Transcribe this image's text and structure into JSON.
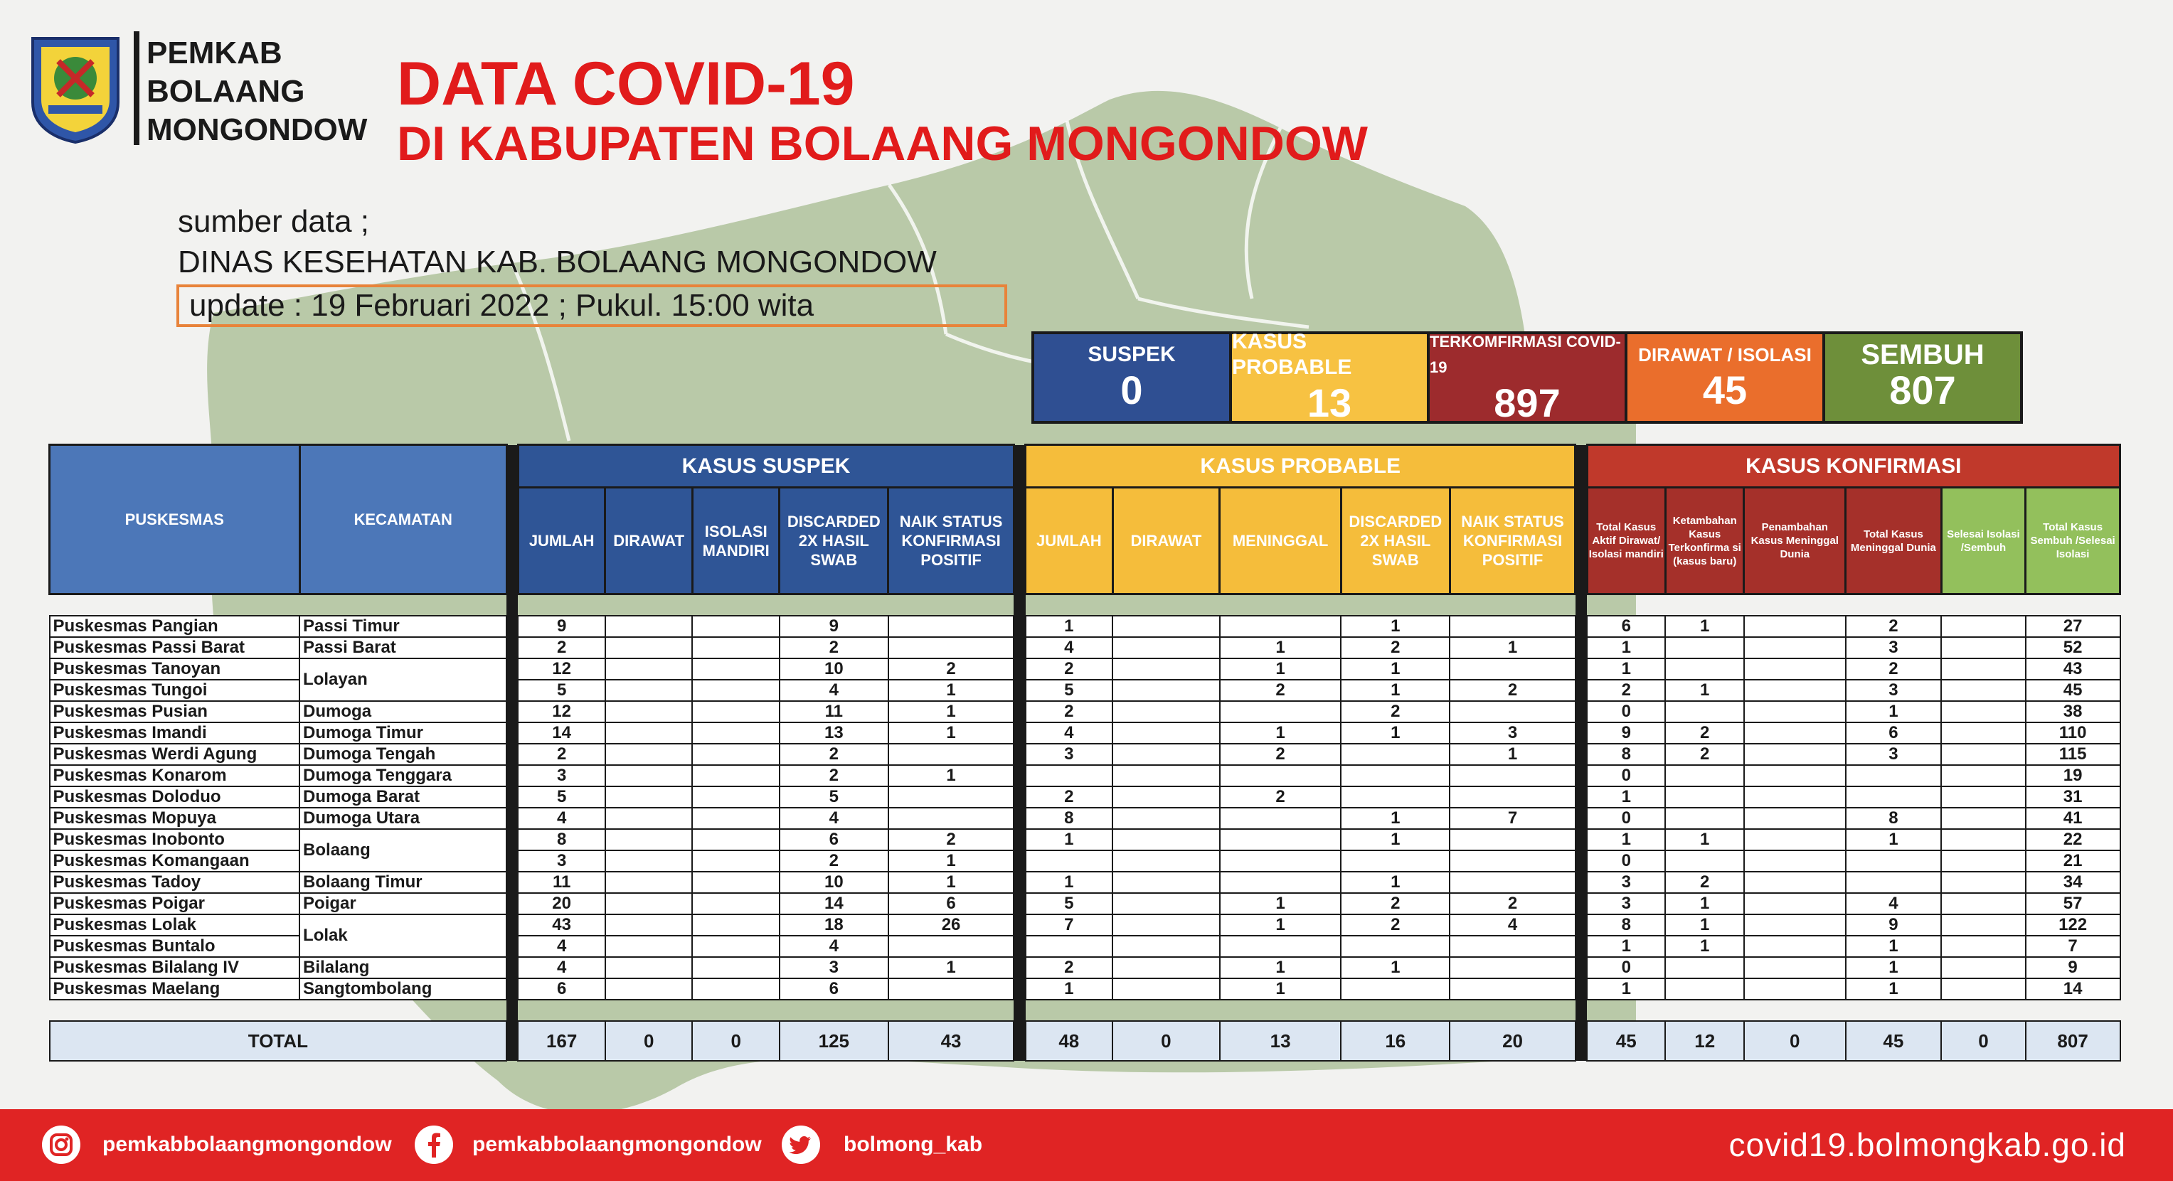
{
  "header": {
    "logo_lines": [
      "PEMKAB",
      "BOLAANG",
      "MONGONDOW"
    ],
    "logo_seal_text": "BOLAANG MONGONDOW",
    "title_line1": "DATA COVID-19",
    "title_line2": "DI KABUPATEN BOLAANG MONGONDOW",
    "source_label": "sumber data ;",
    "source_name": "DINAS KESEHATAN KAB. BOLAANG MONGONDOW",
    "update_text": "update  : 19 Februari 2022 ; Pukul. 15:00 wita"
  },
  "summary": [
    {
      "label": "SUSPEK",
      "value": "0"
    },
    {
      "label": "KASUS PROBABLE",
      "value": "13"
    },
    {
      "label": "TERKOMFIRMASI COVID-19",
      "value": "897"
    },
    {
      "label": "DIRAWAT / ISOLASI",
      "value": "45"
    },
    {
      "label": "SEMBUH",
      "value": "807"
    }
  ],
  "table": {
    "col_puskesmas": "PUSKESMAS",
    "col_kecamatan": "KECAMATAN",
    "group_suspek": "KASUS SUSPEK",
    "group_probable": "KASUS PROBABLE",
    "group_konfirmasi": "KASUS KONFIRMASI",
    "suspek_cols": [
      "JUMLAH",
      "DIRAWAT",
      "ISOLASI MANDIRI",
      "DISCARDED 2X HASIL SWAB",
      "NAIK STATUS KONFIRMASI POSITIF"
    ],
    "probable_cols": [
      "JUMLAH",
      "DIRAWAT",
      "MENINGGAL",
      "DISCARDED 2X HASIL SWAB",
      "NAIK STATUS KONFIRMASI POSITIF"
    ],
    "konfirmasi_cols": [
      "Total Kasus Aktif Dirawat/ Isolasi mandiri",
      "Ketambahan Kasus Terkonfirma si (kasus baru)",
      "Penambahan Kasus Meninggal Dunia",
      "Total Kasus Meninggal Dunia",
      "Selesai Isolasi /Sembuh",
      "Total Kasus Sembuh /Selesai Isolasi"
    ],
    "rows": [
      {
        "p": "Puskesmas Pangian",
        "k": "Passi Timur",
        "v": [
          "9",
          "",
          "",
          "9",
          "",
          "1",
          "",
          "",
          "1",
          "",
          "6",
          "1",
          "",
          "2",
          "",
          "27"
        ]
      },
      {
        "p": "Puskesmas Passi Barat",
        "k": "Passi Barat",
        "v": [
          "2",
          "",
          "",
          "2",
          "",
          "4",
          "",
          "1",
          "2",
          "1",
          "1",
          "",
          "",
          "3",
          "",
          "52"
        ]
      },
      {
        "p": "Puskesmas Tanoyan",
        "k": "Lolayan",
        "span": 2,
        "v": [
          "12",
          "",
          "",
          "10",
          "2",
          "2",
          "",
          "1",
          "1",
          "",
          "1",
          "",
          "",
          "2",
          "",
          "43"
        ]
      },
      {
        "p": "Puskesmas Tungoi",
        "k": null,
        "v": [
          "5",
          "",
          "",
          "4",
          "1",
          "5",
          "",
          "2",
          "1",
          "2",
          "2",
          "1",
          "",
          "3",
          "",
          "45"
        ]
      },
      {
        "p": "Puskesmas Pusian",
        "k": "Dumoga",
        "v": [
          "12",
          "",
          "",
          "11",
          "1",
          "2",
          "",
          "",
          "2",
          "",
          "0",
          "",
          "",
          "1",
          "",
          "38"
        ]
      },
      {
        "p": "Puskesmas Imandi",
        "k": "Dumoga Timur",
        "v": [
          "14",
          "",
          "",
          "13",
          "1",
          "4",
          "",
          "1",
          "1",
          "3",
          "9",
          "2",
          "",
          "6",
          "",
          "110"
        ]
      },
      {
        "p": "Puskesmas Werdi Agung",
        "k": "Dumoga Tengah",
        "v": [
          "2",
          "",
          "",
          "2",
          "",
          "3",
          "",
          "2",
          "",
          "1",
          "8",
          "2",
          "",
          "3",
          "",
          "115"
        ]
      },
      {
        "p": "Puskesmas Konarom",
        "k": "Dumoga Tenggara",
        "v": [
          "3",
          "",
          "",
          "2",
          "1",
          "",
          "",
          "",
          "",
          "",
          "0",
          "",
          "",
          "",
          "",
          "19"
        ]
      },
      {
        "p": "Puskesmas Doloduo",
        "k": "Dumoga Barat",
        "v": [
          "5",
          "",
          "",
          "5",
          "",
          "2",
          "",
          "2",
          "",
          "",
          "1",
          "",
          "",
          "",
          "",
          "31"
        ]
      },
      {
        "p": "Puskesmas Mopuya",
        "k": "Dumoga Utara",
        "v": [
          "4",
          "",
          "",
          "4",
          "",
          "8",
          "",
          "",
          "1",
          "7",
          "0",
          "",
          "",
          "8",
          "",
          "41"
        ]
      },
      {
        "p": "Puskesmas Inobonto",
        "k": "Bolaang",
        "span": 2,
        "v": [
          "8",
          "",
          "",
          "6",
          "2",
          "1",
          "",
          "",
          "1",
          "",
          "1",
          "1",
          "",
          "1",
          "",
          "22"
        ]
      },
      {
        "p": "Puskesmas Komangaan",
        "k": null,
        "v": [
          "3",
          "",
          "",
          "2",
          "1",
          "",
          "",
          "",
          "",
          "",
          "0",
          "",
          "",
          "",
          "",
          "21"
        ]
      },
      {
        "p": "Puskesmas Tadoy",
        "k": "Bolaang Timur",
        "v": [
          "11",
          "",
          "",
          "10",
          "1",
          "1",
          "",
          "",
          "1",
          "",
          "3",
          "2",
          "",
          "",
          "",
          "34"
        ]
      },
      {
        "p": "Puskesmas Poigar",
        "k": "Poigar",
        "v": [
          "20",
          "",
          "",
          "14",
          "6",
          "5",
          "",
          "1",
          "2",
          "2",
          "3",
          "1",
          "",
          "4",
          "",
          "57"
        ]
      },
      {
        "p": "Puskesmas Lolak",
        "k": "Lolak",
        "span": 2,
        "v": [
          "43",
          "",
          "",
          "18",
          "26",
          "7",
          "",
          "1",
          "2",
          "4",
          "8",
          "1",
          "",
          "9",
          "",
          "122"
        ]
      },
      {
        "p": "Puskesmas Buntalo",
        "k": null,
        "v": [
          "4",
          "",
          "",
          "4",
          "",
          "",
          "",
          "",
          "",
          "",
          "1",
          "1",
          "",
          "1",
          "",
          "7"
        ]
      },
      {
        "p": "Puskesmas Bilalang IV",
        "k": "Bilalang",
        "v": [
          "4",
          "",
          "",
          "3",
          "1",
          "2",
          "",
          "1",
          "1",
          "",
          "0",
          "",
          "",
          "1",
          "",
          "9"
        ]
      },
      {
        "p": "Puskesmas Maelang",
        "k": "Sangtombolang",
        "v": [
          "6",
          "",
          "",
          "6",
          "",
          "1",
          "",
          "1",
          "",
          "",
          "1",
          "",
          "",
          "1",
          "",
          "14"
        ]
      }
    ],
    "total_label": "TOTAL",
    "totals": [
      "167",
      "0",
      "0",
      "125",
      "43",
      "48",
      "0",
      "13",
      "16",
      "20",
      "45",
      "12",
      "0",
      "45",
      "0",
      "807"
    ]
  },
  "footer": {
    "instagram": "pemkabbolaangmongondow",
    "facebook": "pemkabbolaangmongondow",
    "twitter": "bolmong_kab",
    "website": "covid19.bolmongkab.go.id"
  },
  "colors": {
    "title_red": "#e11b1b",
    "suspek_blue": "#2f5596",
    "probable_yellow": "#f5bd3b",
    "konfirmasi_red": "#c0392b",
    "sembuh_green": "#93c05c",
    "footer_red": "#e02424",
    "map_green": "#b9c9a8"
  }
}
